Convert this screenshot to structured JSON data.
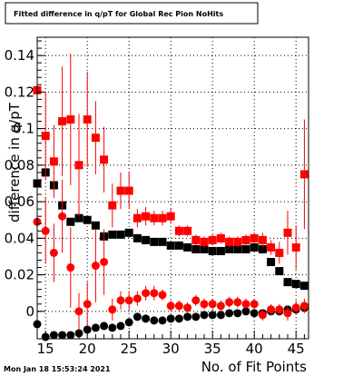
{
  "chart_data": {
    "type": "scatter",
    "title": "Fitted difference in q/pT for Global Rec Pion NoHits",
    "xlabel": "No. of Fit Points",
    "ylabel": "difference in q/pT",
    "xlim": [
      14,
      46.5
    ],
    "ylim": [
      -0.015,
      0.15
    ],
    "grid": true,
    "x_ticks": [
      15,
      20,
      25,
      30,
      35,
      40,
      45
    ],
    "y_ticks": [
      0,
      0.02,
      0.04,
      0.06,
      0.08,
      0.1,
      0.12,
      0.14
    ],
    "y_tick_labels": [
      "0",
      "0.02",
      "0.04",
      "0.06",
      "0.08",
      "0.1",
      "0.12",
      "0.14"
    ],
    "timestamp": "Mon Jan 18 15:53:24 2021",
    "series": [
      {
        "marker": "square",
        "color": "#000000",
        "points": [
          {
            "x": 14,
            "y": 0.07
          },
          {
            "x": 15,
            "y": 0.076
          },
          {
            "x": 16,
            "y": 0.069
          },
          {
            "x": 17,
            "y": 0.058
          },
          {
            "x": 18,
            "y": 0.049
          },
          {
            "x": 19,
            "y": 0.051
          },
          {
            "x": 20,
            "y": 0.05
          },
          {
            "x": 21,
            "y": 0.047
          },
          {
            "x": 22,
            "y": 0.041
          },
          {
            "x": 23,
            "y": 0.042
          },
          {
            "x": 24,
            "y": 0.042
          },
          {
            "x": 25,
            "y": 0.043
          },
          {
            "x": 26,
            "y": 0.04
          },
          {
            "x": 27,
            "y": 0.039
          },
          {
            "x": 28,
            "y": 0.038
          },
          {
            "x": 29,
            "y": 0.038
          },
          {
            "x": 30,
            "y": 0.036
          },
          {
            "x": 31,
            "y": 0.036
          },
          {
            "x": 32,
            "y": 0.035
          },
          {
            "x": 33,
            "y": 0.034
          },
          {
            "x": 34,
            "y": 0.034
          },
          {
            "x": 35,
            "y": 0.033
          },
          {
            "x": 36,
            "y": 0.033
          },
          {
            "x": 37,
            "y": 0.034
          },
          {
            "x": 38,
            "y": 0.034
          },
          {
            "x": 39,
            "y": 0.034
          },
          {
            "x": 40,
            "y": 0.035
          },
          {
            "x": 41,
            "y": 0.034
          },
          {
            "x": 42,
            "y": 0.027
          },
          {
            "x": 43,
            "y": 0.022
          },
          {
            "x": 44,
            "y": 0.016
          },
          {
            "x": 45,
            "y": 0.015
          },
          {
            "x": 46,
            "y": 0.014
          }
        ]
      },
      {
        "marker": "square",
        "color": "#ff0000",
        "points": [
          {
            "x": 14,
            "y": 0.121,
            "err": 0.02
          },
          {
            "x": 15,
            "y": 0.096,
            "err": 0.024
          },
          {
            "x": 16,
            "y": 0.082,
            "err": 0.02
          },
          {
            "x": 17,
            "y": 0.104,
            "err": 0.03
          },
          {
            "x": 18,
            "y": 0.105,
            "err": 0.036
          },
          {
            "x": 19,
            "y": 0.08,
            "err": 0.028
          },
          {
            "x": 20,
            "y": 0.105,
            "err": 0.026
          },
          {
            "x": 21,
            "y": 0.095,
            "err": 0.02
          },
          {
            "x": 22,
            "y": 0.083,
            "err": 0.018
          },
          {
            "x": 23,
            "y": 0.058,
            "err": 0.012
          },
          {
            "x": 24,
            "y": 0.066,
            "err": 0.01
          },
          {
            "x": 25,
            "y": 0.066,
            "err": 0.01
          },
          {
            "x": 26,
            "y": 0.051,
            "err": 0.005
          },
          {
            "x": 27,
            "y": 0.052,
            "err": 0.005
          },
          {
            "x": 28,
            "y": 0.051,
            "err": 0.004
          },
          {
            "x": 29,
            "y": 0.051,
            "err": 0.004
          },
          {
            "x": 30,
            "y": 0.052,
            "err": 0.004
          },
          {
            "x": 31,
            "y": 0.044,
            "err": 0.003
          },
          {
            "x": 32,
            "y": 0.044,
            "err": 0.003
          },
          {
            "x": 33,
            "y": 0.039,
            "err": 0.003
          },
          {
            "x": 34,
            "y": 0.038,
            "err": 0.003
          },
          {
            "x": 35,
            "y": 0.039,
            "err": 0.003
          },
          {
            "x": 36,
            "y": 0.04,
            "err": 0.003
          },
          {
            "x": 37,
            "y": 0.038,
            "err": 0.003
          },
          {
            "x": 38,
            "y": 0.038,
            "err": 0.003
          },
          {
            "x": 39,
            "y": 0.039,
            "err": 0.003
          },
          {
            "x": 40,
            "y": 0.04,
            "err": 0.003
          },
          {
            "x": 41,
            "y": 0.039,
            "err": 0.004
          },
          {
            "x": 42,
            "y": 0.035,
            "err": 0.004
          },
          {
            "x": 43,
            "y": 0.032,
            "err": 0.006
          },
          {
            "x": 44,
            "y": 0.043,
            "err": 0.012
          },
          {
            "x": 45,
            "y": 0.035,
            "err": 0.012
          },
          {
            "x": 46,
            "y": 0.075,
            "err": 0.03
          }
        ]
      },
      {
        "marker": "circle",
        "color": "#000000",
        "points": [
          {
            "x": 14,
            "y": -0.007
          },
          {
            "x": 15,
            "y": -0.014
          },
          {
            "x": 16,
            "y": -0.013
          },
          {
            "x": 17,
            "y": -0.013
          },
          {
            "x": 18,
            "y": -0.013
          },
          {
            "x": 19,
            "y": -0.012
          },
          {
            "x": 20,
            "y": -0.01
          },
          {
            "x": 21,
            "y": -0.009
          },
          {
            "x": 22,
            "y": -0.008
          },
          {
            "x": 23,
            "y": -0.009
          },
          {
            "x": 24,
            "y": -0.008
          },
          {
            "x": 25,
            "y": -0.006
          },
          {
            "x": 26,
            "y": -0.003
          },
          {
            "x": 27,
            "y": -0.004
          },
          {
            "x": 28,
            "y": -0.005
          },
          {
            "x": 29,
            "y": -0.005
          },
          {
            "x": 30,
            "y": -0.004
          },
          {
            "x": 31,
            "y": -0.004
          },
          {
            "x": 32,
            "y": -0.003
          },
          {
            "x": 33,
            "y": -0.003
          },
          {
            "x": 34,
            "y": -0.002
          },
          {
            "x": 35,
            "y": -0.002
          },
          {
            "x": 36,
            "y": -0.002
          },
          {
            "x": 37,
            "y": -0.001
          },
          {
            "x": 38,
            "y": -0.001
          },
          {
            "x": 39,
            "y": 0.0
          },
          {
            "x": 40,
            "y": -0.001
          },
          {
            "x": 41,
            "y": -0.001
          },
          {
            "x": 42,
            "y": 0.0
          },
          {
            "x": 43,
            "y": 0.0
          },
          {
            "x": 44,
            "y": 0.001
          },
          {
            "x": 45,
            "y": 0.001
          },
          {
            "x": 46,
            "y": 0.002
          }
        ]
      },
      {
        "marker": "circle",
        "color": "#ff0000",
        "points": [
          {
            "x": 14,
            "y": 0.049,
            "err": 0.016
          },
          {
            "x": 15,
            "y": 0.044,
            "err": 0.018
          },
          {
            "x": 16,
            "y": 0.032,
            "err": 0.016
          },
          {
            "x": 17,
            "y": 0.052,
            "err": 0.02
          },
          {
            "x": 18,
            "y": 0.024,
            "err": 0.022
          },
          {
            "x": 19,
            "y": 0.0,
            "err": 0.01
          },
          {
            "x": 20,
            "y": 0.004,
            "err": 0.012
          },
          {
            "x": 21,
            "y": 0.025,
            "err": 0.02
          },
          {
            "x": 22,
            "y": 0.027,
            "err": 0.018
          },
          {
            "x": 23,
            "y": 0.001,
            "err": 0.006
          },
          {
            "x": 24,
            "y": 0.006,
            "err": 0.005
          },
          {
            "x": 25,
            "y": 0.006,
            "err": 0.005
          },
          {
            "x": 26,
            "y": 0.007,
            "err": 0.004
          },
          {
            "x": 27,
            "y": 0.01,
            "err": 0.004
          },
          {
            "x": 28,
            "y": 0.01,
            "err": 0.004
          },
          {
            "x": 29,
            "y": 0.009,
            "err": 0.003
          },
          {
            "x": 30,
            "y": 0.003,
            "err": 0.003
          },
          {
            "x": 31,
            "y": 0.003,
            "err": 0.003
          },
          {
            "x": 32,
            "y": 0.002,
            "err": 0.003
          },
          {
            "x": 33,
            "y": 0.006,
            "err": 0.003
          },
          {
            "x": 34,
            "y": 0.004,
            "err": 0.003
          },
          {
            "x": 35,
            "y": 0.004,
            "err": 0.003
          },
          {
            "x": 36,
            "y": 0.003,
            "err": 0.003
          },
          {
            "x": 37,
            "y": 0.005,
            "err": 0.003
          },
          {
            "x": 38,
            "y": 0.005,
            "err": 0.003
          },
          {
            "x": 39,
            "y": 0.004,
            "err": 0.003
          },
          {
            "x": 40,
            "y": 0.004,
            "err": 0.003
          },
          {
            "x": 41,
            "y": -0.002,
            "err": 0.003
          },
          {
            "x": 42,
            "y": 0.001,
            "err": 0.003
          },
          {
            "x": 43,
            "y": 0.001,
            "err": 0.003
          },
          {
            "x": 44,
            "y": -0.001,
            "err": 0.004
          },
          {
            "x": 45,
            "y": 0.002,
            "err": 0.004
          },
          {
            "x": 46,
            "y": 0.003,
            "err": 0.004
          }
        ]
      }
    ]
  }
}
